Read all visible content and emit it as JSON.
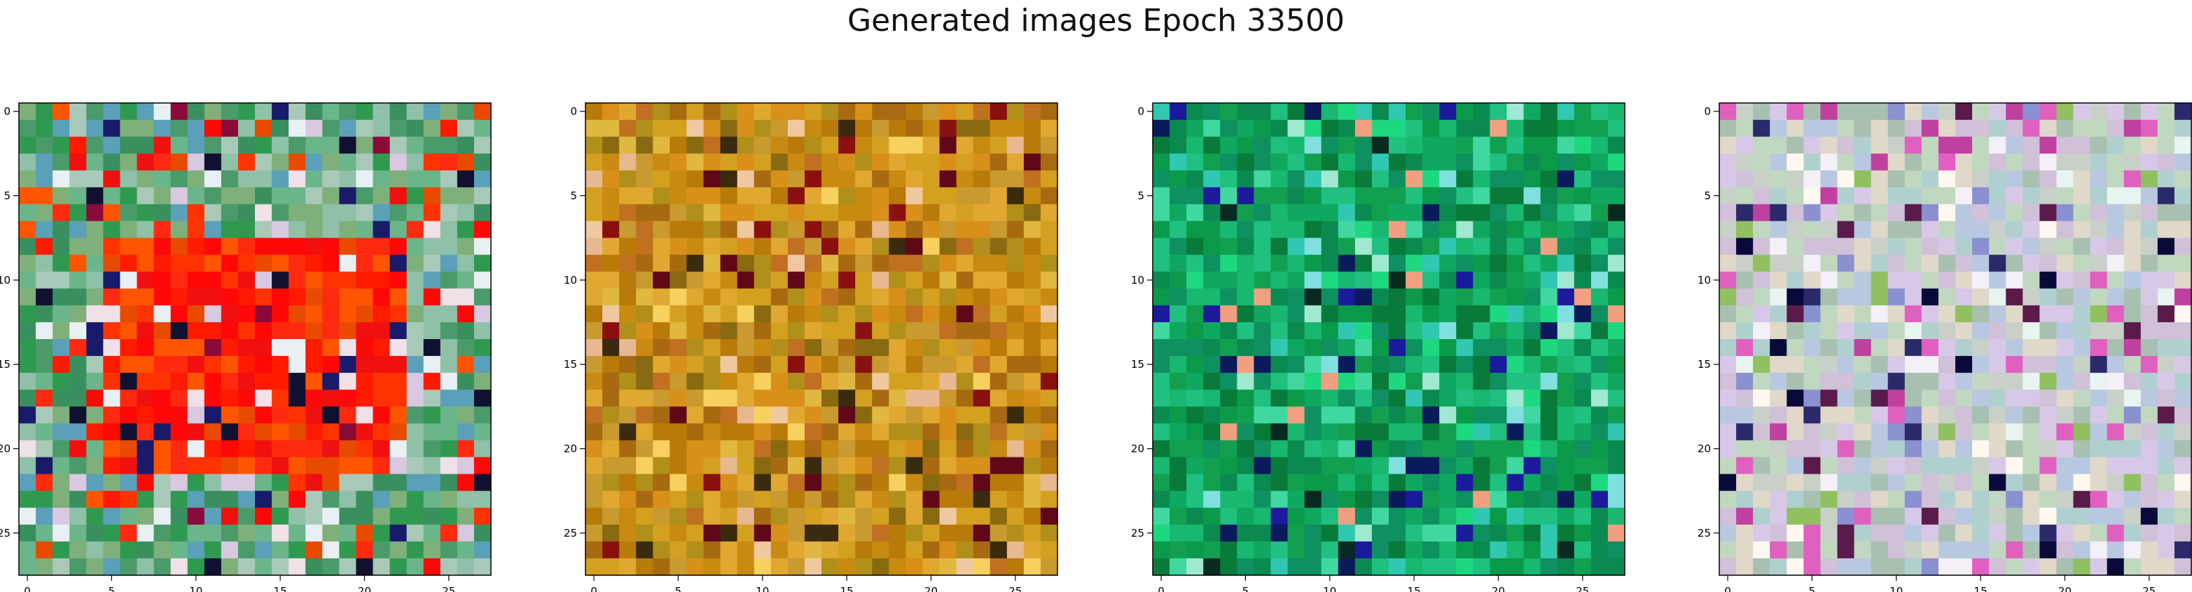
{
  "figure": {
    "title": "Generated images Epoch 33500"
  },
  "chart_data": [
    {
      "type": "heatmap",
      "title": "",
      "xlabel": "",
      "ylabel": "",
      "grid_size": [
        28,
        28
      ],
      "xlim": [
        -0.5,
        27.5
      ],
      "ylim": [
        27.5,
        -0.5
      ],
      "x_ticks": [
        0,
        5,
        10,
        15,
        20,
        25
      ],
      "y_ticks": [
        0,
        5,
        10,
        15,
        20,
        25
      ],
      "grid": false,
      "palette": {
        "base": [
          "#4a9a6a",
          "#6ab58a",
          "#3a8f5e",
          "#8fc0a8",
          "#5aa0b8",
          "#2f9a4f",
          "#a9c9b8",
          "#7fb07a"
        ],
        "accent": [
          "#ff1a00",
          "#ff3300",
          "#ff5500",
          "#f01010",
          "#ff2a10",
          "#e84a00",
          "#ff0808"
        ],
        "dark": [
          "#1a1a6a",
          "#8a0a3a",
          "#101030"
        ],
        "light": [
          "#f0e0e8",
          "#e8f0f4",
          "#d8c8e0"
        ]
      },
      "regions": [
        {
          "rows": [
            8,
            21
          ],
          "cols": [
            5,
            22
          ],
          "palette": "accent"
        }
      ]
    },
    {
      "type": "heatmap",
      "title": "",
      "xlabel": "",
      "ylabel": "",
      "grid_size": [
        28,
        28
      ],
      "xlim": [
        -0.5,
        27.5
      ],
      "ylim": [
        27.5,
        -0.5
      ],
      "x_ticks": [
        0,
        5,
        10,
        15,
        20,
        25
      ],
      "y_ticks": [
        0,
        5,
        10,
        15,
        20,
        25
      ],
      "grid": false,
      "palette": {
        "base": [
          "#c88a10",
          "#d4a020",
          "#b87a08",
          "#e0a830",
          "#a86a10",
          "#c89a30",
          "#d8901a",
          "#b0901a"
        ],
        "accent": [
          "#8a6a10",
          "#e0b840",
          "#c07020"
        ],
        "dark": [
          "#600818",
          "#8a1010",
          "#3a2a10"
        ],
        "light": [
          "#f0c8a0",
          "#f8d060",
          "#e8b890"
        ]
      },
      "regions": []
    },
    {
      "type": "heatmap",
      "title": "",
      "xlabel": "",
      "ylabel": "",
      "grid_size": [
        28,
        28
      ],
      "xlim": [
        -0.5,
        27.5
      ],
      "ylim": [
        27.5,
        -0.5
      ],
      "x_ticks": [
        0,
        5,
        10,
        15,
        20,
        25
      ],
      "y_ticks": [
        0,
        5,
        10,
        15,
        20,
        25
      ],
      "grid": false,
      "palette": {
        "base": [
          "#0a9a4a",
          "#10a860",
          "#087a3a",
          "#18b870",
          "#0a8a50",
          "#20c080",
          "#0e9060",
          "#12a050"
        ],
        "accent": [
          "#40d8a0",
          "#30c8b0",
          "#1ed880"
        ],
        "dark": [
          "#0a1a5a",
          "#082a20",
          "#1a1a9a"
        ],
        "light": [
          "#a0e8d0",
          "#f0a080",
          "#80e0e0"
        ]
      },
      "regions": []
    },
    {
      "type": "heatmap",
      "title": "",
      "xlabel": "",
      "ylabel": "",
      "grid_size": [
        28,
        28
      ],
      "xlim": [
        -0.5,
        27.5
      ],
      "ylim": [
        27.5,
        -0.5
      ],
      "x_ticks": [
        0,
        5,
        10,
        15,
        20,
        25
      ],
      "y_ticks": [
        0,
        5,
        10,
        15,
        20,
        25
      ],
      "grid": false,
      "palette": {
        "base": [
          "#c8d0c8",
          "#b8c8e0",
          "#d0c0d8",
          "#c0d8c0",
          "#e0d8c8",
          "#a8c0b0",
          "#d8c8e8",
          "#b0d0d0"
        ],
        "accent": [
          "#c040a0",
          "#8a90d0",
          "#90c060",
          "#e060c0"
        ],
        "dark": [
          "#0a0a3a",
          "#2a2a6a",
          "#5a1a4a"
        ],
        "light": [
          "#f4f0f8",
          "#e8f4f0",
          "#fff8f0"
        ]
      },
      "regions": []
    }
  ]
}
